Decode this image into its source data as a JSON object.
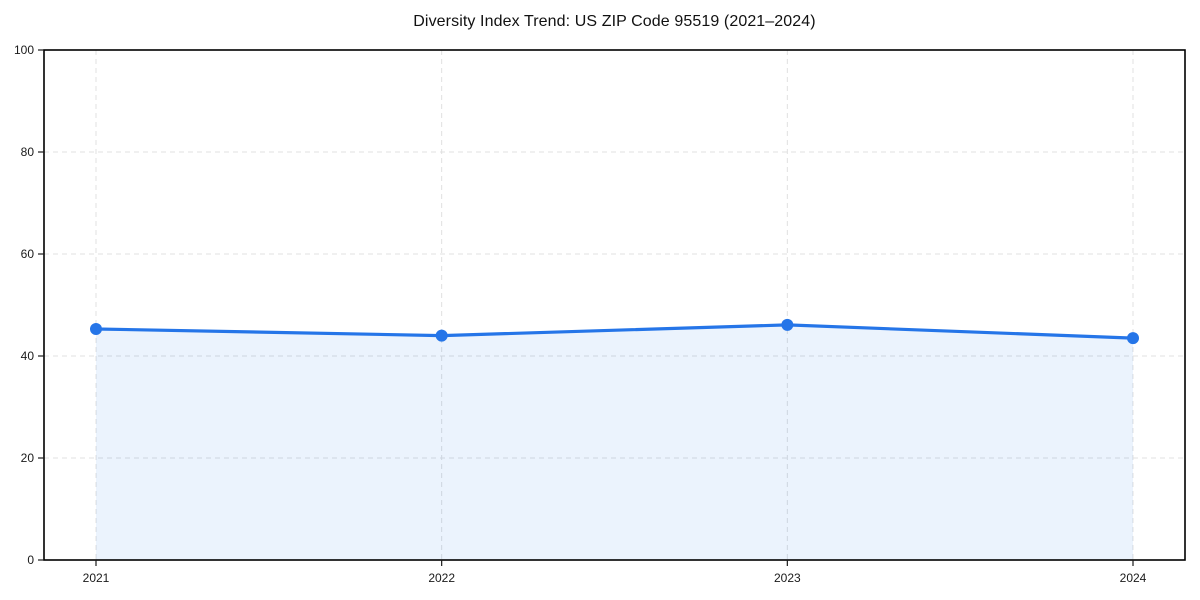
{
  "chart_data": {
    "type": "area",
    "title": "Diversity Index Trend: US ZIP Code 95519 (2021–2024)",
    "x": [
      "2021",
      "2022",
      "2023",
      "2024"
    ],
    "series": [
      {
        "name": "Diversity Index",
        "values": [
          45.3,
          44.0,
          46.1,
          43.5
        ]
      }
    ],
    "xlabel": "",
    "ylabel": "",
    "ylim": [
      0,
      100
    ],
    "yticks": [
      0,
      20,
      40,
      60,
      80,
      100
    ],
    "grid": "dashed-both-axes",
    "legend": "none",
    "line_color": "#2575e8",
    "marker": "circle",
    "fill_opacity": 0.09,
    "grid_color": "#e0e0e0",
    "border_color": "#000000",
    "background_color": "#ffffff"
  }
}
